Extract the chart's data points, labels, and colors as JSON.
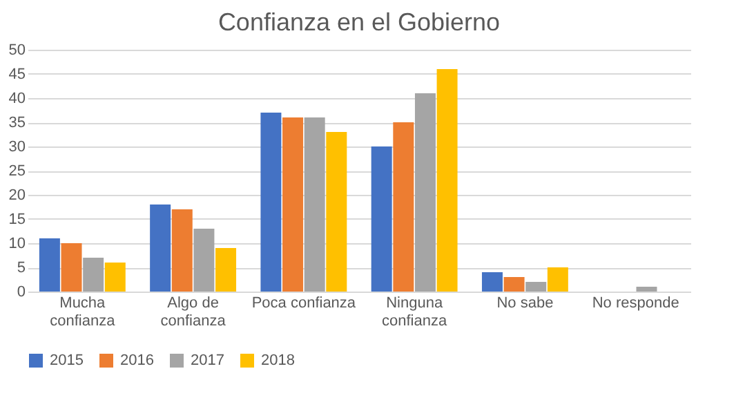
{
  "chart_data": {
    "type": "bar",
    "title": "Confianza en el Gobierno",
    "categories": [
      "Mucha confianza",
      "Algo de confianza",
      "Poca confianza",
      "Ninguna confianza",
      "No sabe",
      "No responde"
    ],
    "series": [
      {
        "name": "2015",
        "color": "#4472c4",
        "values": [
          11,
          18,
          37,
          30,
          4,
          0
        ]
      },
      {
        "name": "2016",
        "color": "#ed7d31",
        "values": [
          10,
          17,
          36,
          35,
          3,
          0
        ]
      },
      {
        "name": "2017",
        "color": "#a5a5a5",
        "values": [
          7,
          13,
          36,
          41,
          2,
          1
        ]
      },
      {
        "name": "2018",
        "color": "#ffc000",
        "values": [
          6,
          9,
          33,
          46,
          5,
          0
        ]
      }
    ],
    "ylim": [
      0,
      50
    ],
    "yticks": [
      0,
      5,
      10,
      15,
      20,
      25,
      30,
      35,
      40,
      45,
      50
    ],
    "grid": "y",
    "legend": "bottom"
  }
}
